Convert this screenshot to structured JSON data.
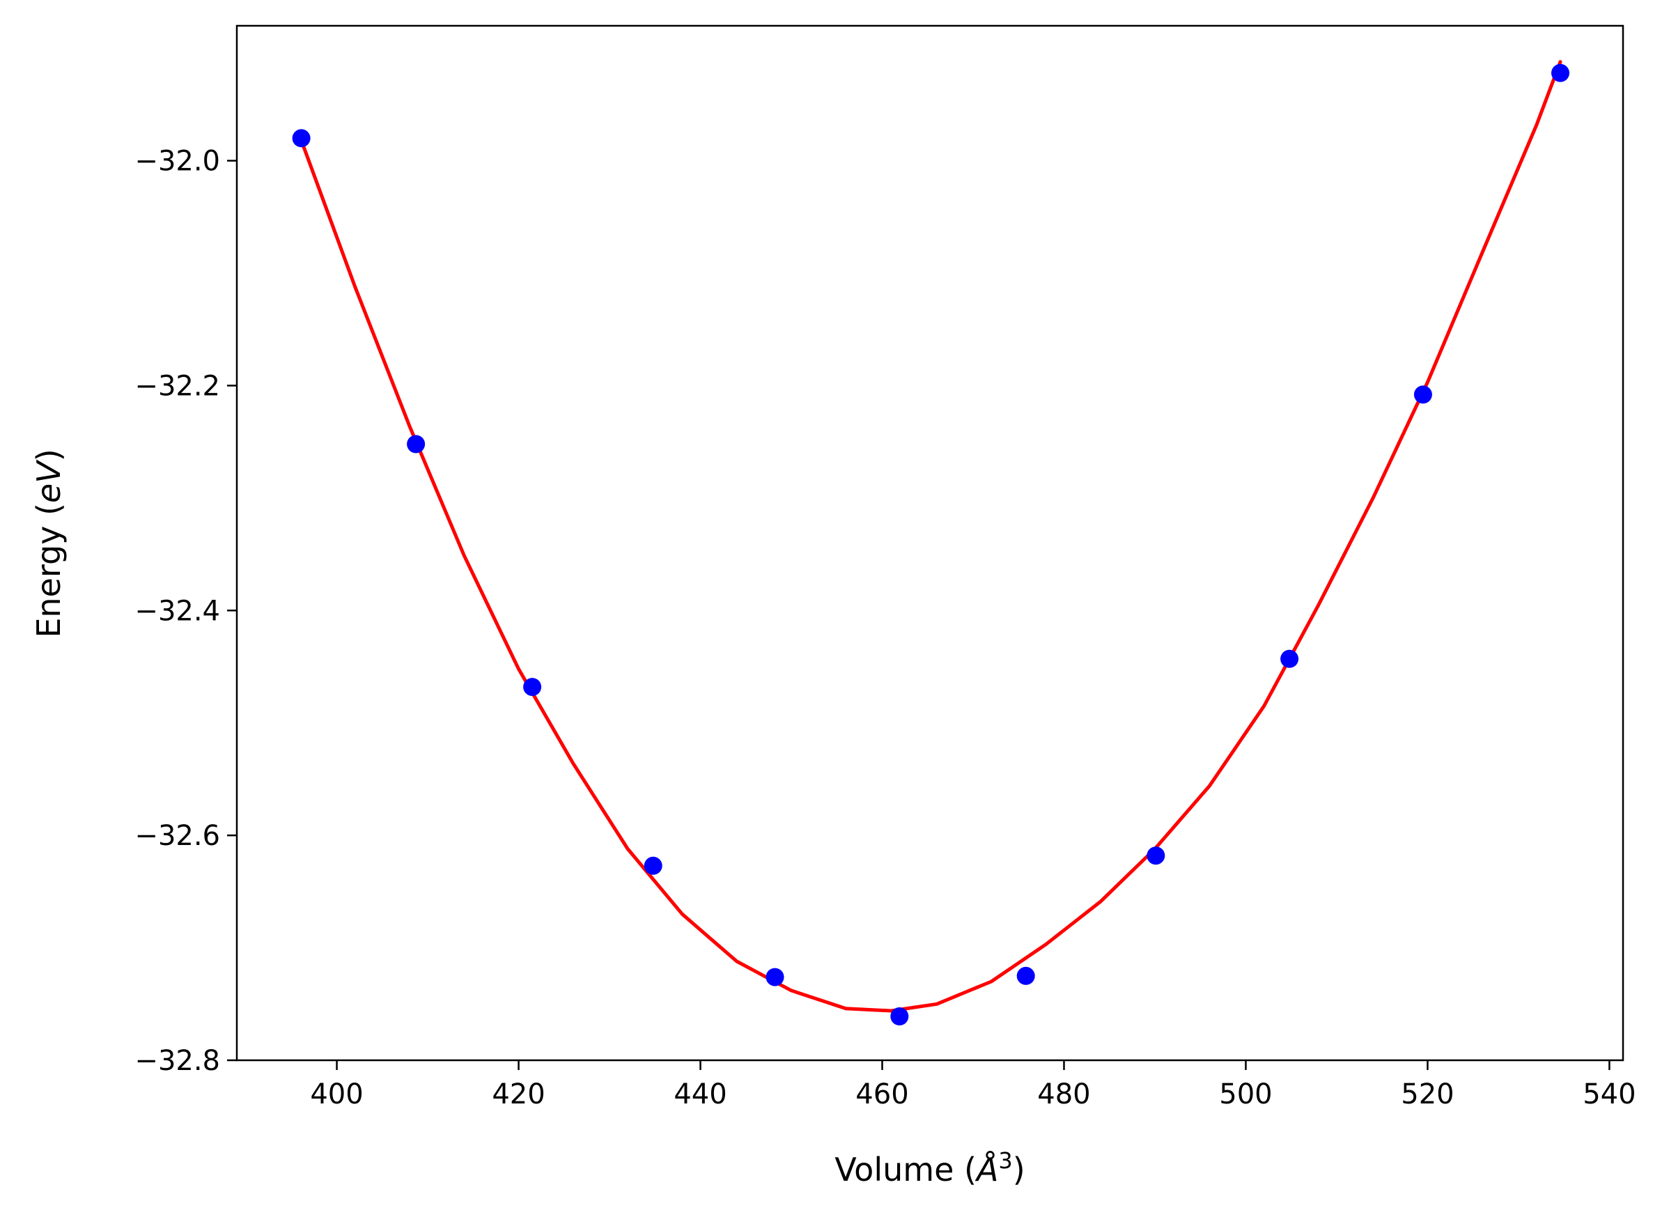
{
  "chart_data": {
    "type": "scatter",
    "title": "",
    "xlabel": {
      "prefix": "Volume (",
      "symbol": "Å",
      "sup": "3",
      "suffix": ")"
    },
    "ylabel": {
      "prefix": "Energy (",
      "unit": "eV",
      "suffix": ")"
    },
    "xlim": [
      389,
      541.5
    ],
    "ylim": [
      -32.8,
      -31.88
    ],
    "xticks": [
      400,
      420,
      440,
      460,
      480,
      500,
      520,
      540
    ],
    "yticks": [
      -32.0,
      -32.2,
      -32.4,
      -32.6,
      -32.8
    ],
    "xtick_labels": [
      "400",
      "420",
      "440",
      "460",
      "480",
      "500",
      "520",
      "540"
    ],
    "ytick_labels": [
      "−32.0",
      "−32.2",
      "−32.4",
      "−32.6",
      "−32.8"
    ],
    "grid": false,
    "series": [
      {
        "kind": "points",
        "color": "#0000ff",
        "x": [
          396.1,
          408.7,
          421.5,
          434.8,
          448.2,
          461.9,
          475.8,
          490.1,
          504.8,
          519.5,
          534.6
        ],
        "y": [
          -31.98,
          -32.252,
          -32.468,
          -32.627,
          -32.726,
          -32.761,
          -32.725,
          -32.618,
          -32.443,
          -32.208,
          -31.922
        ]
      },
      {
        "kind": "fit-curve",
        "color": "#ff0000",
        "x": [
          396.1,
          402,
          408,
          414,
          420,
          426,
          432,
          438,
          444,
          450,
          456,
          461,
          466,
          472,
          478,
          484,
          490,
          496,
          502,
          508,
          514,
          520,
          526,
          532,
          534.6
        ],
        "y": [
          -31.982,
          -32.112,
          -32.236,
          -32.351,
          -32.452,
          -32.536,
          -32.612,
          -32.67,
          -32.712,
          -32.738,
          -32.754,
          -32.756,
          -32.75,
          -32.73,
          -32.697,
          -32.659,
          -32.612,
          -32.556,
          -32.485,
          -32.395,
          -32.3,
          -32.197,
          -32.082,
          -31.968,
          -31.912
        ]
      }
    ]
  }
}
